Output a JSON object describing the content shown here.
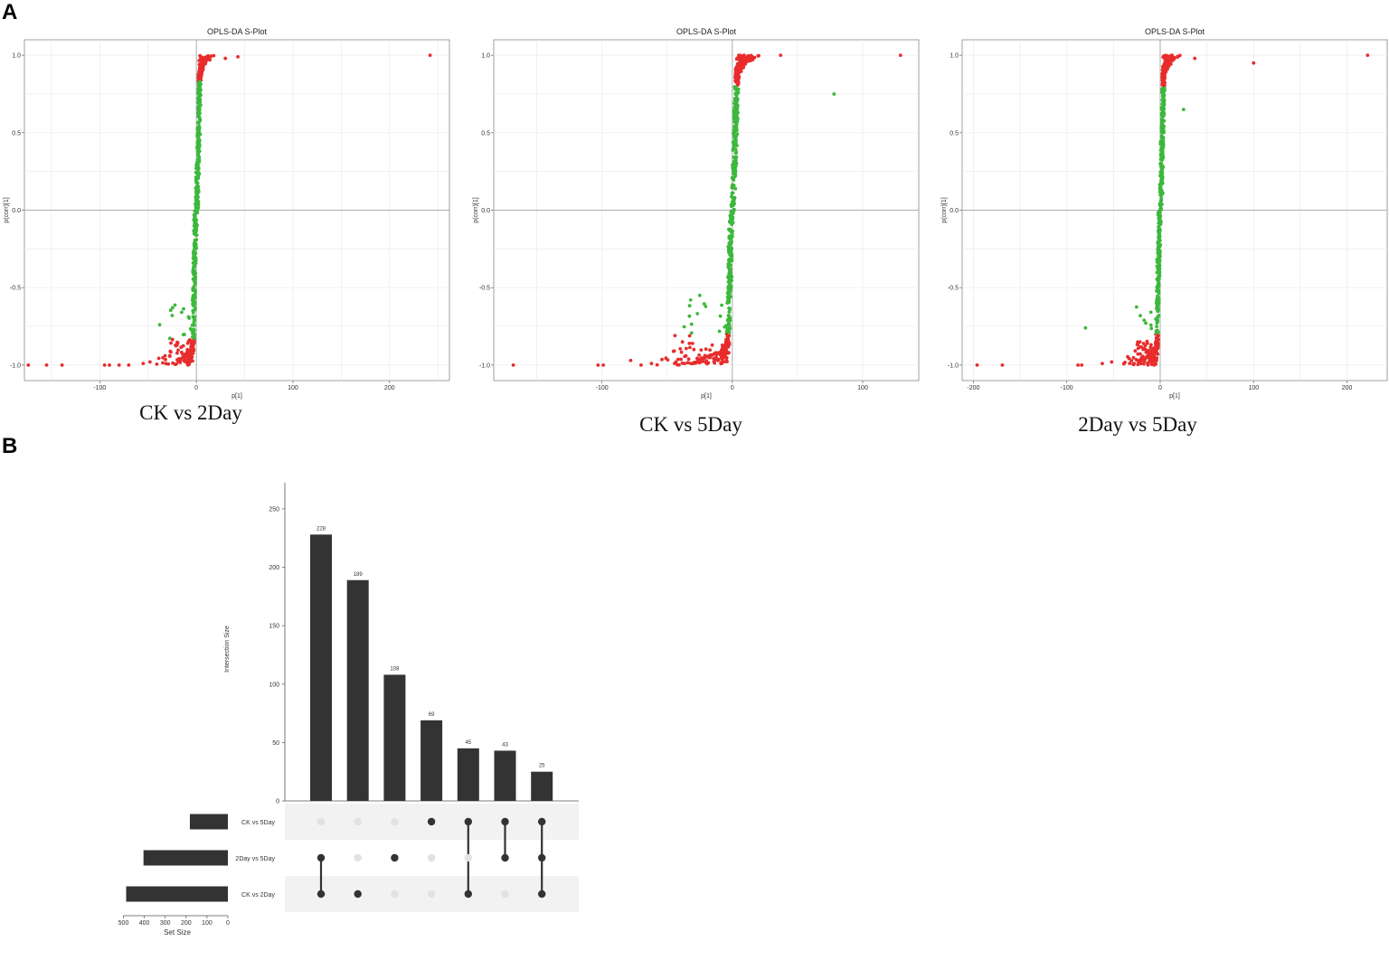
{
  "panels": {
    "a": "A",
    "b": "B"
  },
  "chart_data": [
    {
      "type": "scatter",
      "title": "OPLS-DA S-Plot",
      "caption": "CK vs 2Day",
      "xlabel": "p[1]",
      "ylabel": "p(corr)[1]",
      "xlim": [
        -178,
        262
      ],
      "ylim": [
        -1.1,
        1.1
      ],
      "xticks": [
        -100,
        0,
        100,
        200
      ],
      "yticks": [
        -1.0,
        -0.5,
        0.0,
        0.5,
        1.0
      ],
      "grid": true,
      "colors": {
        "significant": "#e82c2c",
        "not_significant": "#3cb83c"
      },
      "outliers": [
        {
          "x": 242,
          "y": 1.0
        },
        {
          "x": 43,
          "y": 0.99
        },
        {
          "x": 30,
          "y": 0.98
        },
        {
          "x": -174,
          "y": -1.0
        },
        {
          "x": -155,
          "y": -1.0
        },
        {
          "x": -139,
          "y": -1.0
        },
        {
          "x": -95,
          "y": -1.0
        },
        {
          "x": -90,
          "y": -1.0
        },
        {
          "x": -80,
          "y": -1.0
        },
        {
          "x": -70,
          "y": -1.0
        },
        {
          "x": -55,
          "y": -0.99
        },
        {
          "x": -48,
          "y": -0.98
        },
        {
          "x": -38,
          "y": -0.74
        },
        {
          "x": -25,
          "y": -0.68
        }
      ],
      "profile": {
        "pos_spread": 14,
        "neg_spread": 30,
        "sig_threshold": 0.83,
        "n": 650
      }
    },
    {
      "type": "scatter",
      "title": "OPLS-DA S-Plot",
      "caption": "CK vs 5Day",
      "xlabel": "p[1]",
      "ylabel": "p(corr)[1]",
      "xlim": [
        -183,
        143
      ],
      "ylim": [
        -1.1,
        1.1
      ],
      "xticks": [
        -100,
        0,
        100
      ],
      "yticks": [
        -1.0,
        -0.5,
        0.0,
        0.5,
        1.0
      ],
      "grid": true,
      "colors": {
        "significant": "#e82c2c",
        "not_significant": "#3cb83c"
      },
      "outliers": [
        {
          "x": 129,
          "y": 1.0
        },
        {
          "x": 78,
          "y": 0.75
        },
        {
          "x": 37,
          "y": 1.0
        },
        {
          "x": -168,
          "y": -1.0
        },
        {
          "x": -103,
          "y": -1.0
        },
        {
          "x": -99,
          "y": -1.0
        },
        {
          "x": -78,
          "y": -0.97
        },
        {
          "x": -70,
          "y": -1.0
        },
        {
          "x": -62,
          "y": -0.99
        },
        {
          "x": -44,
          "y": -0.81
        },
        {
          "x": -32,
          "y": -0.58
        },
        {
          "x": -25,
          "y": -0.55
        }
      ],
      "profile": {
        "pos_spread": 18,
        "neg_spread": 45,
        "sig_threshold": 0.8,
        "n": 700
      }
    },
    {
      "type": "scatter",
      "title": "OPLS-DA S-Plot",
      "caption": "2Day vs 5Day",
      "xlabel": "p[1]",
      "ylabel": "p(corr)[1]",
      "xlim": [
        -212,
        243
      ],
      "ylim": [
        -1.1,
        1.1
      ],
      "xticks": [
        -200,
        -100,
        0,
        100,
        200
      ],
      "yticks": [
        -1.0,
        -0.5,
        0.0,
        0.5,
        1.0
      ],
      "grid": true,
      "colors": {
        "significant": "#e82c2c",
        "not_significant": "#3cb83c"
      },
      "outliers": [
        {
          "x": 222,
          "y": 1.0
        },
        {
          "x": 100,
          "y": 0.95
        },
        {
          "x": 37,
          "y": 0.98
        },
        {
          "x": 25,
          "y": 0.65
        },
        {
          "x": -196,
          "y": -1.0
        },
        {
          "x": -169,
          "y": -1.0
        },
        {
          "x": -88,
          "y": -1.0
        },
        {
          "x": -84,
          "y": -1.0
        },
        {
          "x": -80,
          "y": -0.76
        },
        {
          "x": -62,
          "y": -0.99
        },
        {
          "x": -52,
          "y": -0.98
        }
      ],
      "profile": {
        "pos_spread": 18,
        "neg_spread": 28,
        "sig_threshold": 0.8,
        "n": 700
      }
    },
    {
      "type": "bar",
      "subtype": "upset",
      "ylabel": "Intersection Size",
      "xlabel_sets": "Set Size",
      "ylim": [
        0,
        260
      ],
      "yticks": [
        0,
        50,
        100,
        150,
        200,
        250
      ],
      "intersections": [
        {
          "value": 228,
          "label": "228",
          "sets": [
            "2Day vs 5Day",
            "CK vs 2Day"
          ]
        },
        {
          "value": 189,
          "label": "189",
          "sets": [
            "CK vs 2Day"
          ]
        },
        {
          "value": 108,
          "label": "108",
          "sets": [
            "2Day vs 5Day"
          ]
        },
        {
          "value": 69,
          "label": "69",
          "sets": [
            "CK vs 5Day"
          ]
        },
        {
          "value": 45,
          "label": "45",
          "sets": [
            "CK vs 5Day",
            "CK vs 2Day"
          ]
        },
        {
          "value": 43,
          "label": "43",
          "sets": [
            "CK vs 5Day",
            "2Day vs 5Day"
          ]
        },
        {
          "value": 25,
          "label": "25",
          "sets": [
            "CK vs 5Day",
            "2Day vs 5Day",
            "CK vs 2Day"
          ]
        }
      ],
      "sets": [
        {
          "name": "CK vs 5Day",
          "size": 182
        },
        {
          "name": "2Day vs 5Day",
          "size": 404
        },
        {
          "name": "CK vs 2Day",
          "size": 487
        }
      ],
      "setsize_ticks": [
        500,
        400,
        300,
        200,
        100,
        0
      ],
      "colors": {
        "bar": "#333333",
        "dot_on": "#333333",
        "dot_off": "#e2e2e2",
        "stripe": "#f2f2f2"
      }
    }
  ]
}
